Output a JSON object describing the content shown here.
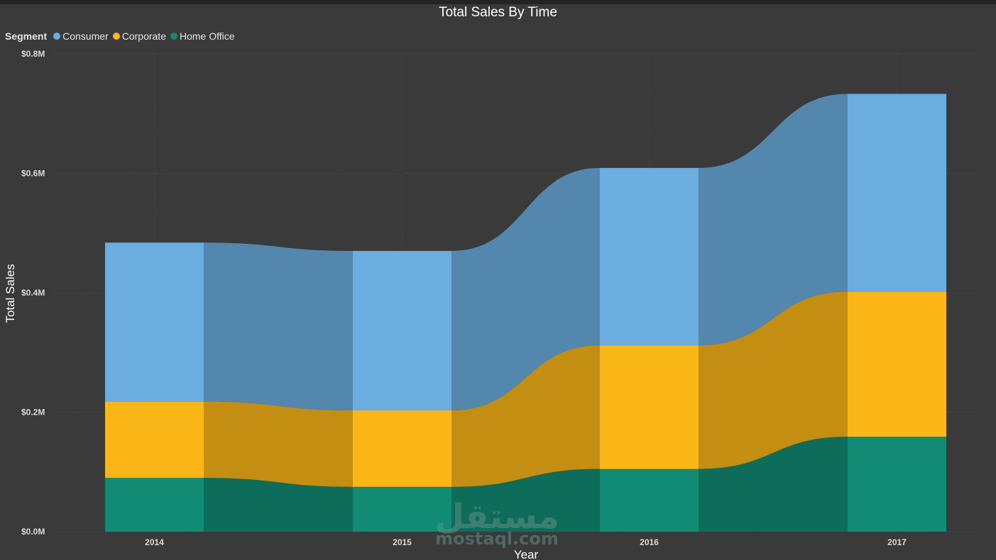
{
  "chart_data": {
    "type": "ribbon",
    "title": "Total Sales By Time",
    "xlabel": "Year",
    "ylabel": "Total Sales",
    "legend_title": "Segment",
    "legend_position": "top-left",
    "categories": [
      "2014",
      "2015",
      "2016",
      "2017"
    ],
    "series": [
      {
        "name": "Home Office",
        "color": "#118b74",
        "values": [
          0.09,
          0.075,
          0.105,
          0.159
        ]
      },
      {
        "name": "Corporate",
        "color": "#fbb617",
        "values": [
          0.128,
          0.128,
          0.207,
          0.243
        ]
      },
      {
        "name": "Consumer",
        "color": "#6caddf",
        "values": [
          0.266,
          0.267,
          0.297,
          0.331
        ]
      }
    ],
    "ylim": [
      0,
      0.8
    ],
    "yticks": [
      "$0.0M",
      "$0.2M",
      "$0.4M",
      "$0.6M",
      "$0.8M"
    ],
    "grid": true
  },
  "watermark": {
    "arabic": "مستقل",
    "latin": "mostaql.com"
  }
}
